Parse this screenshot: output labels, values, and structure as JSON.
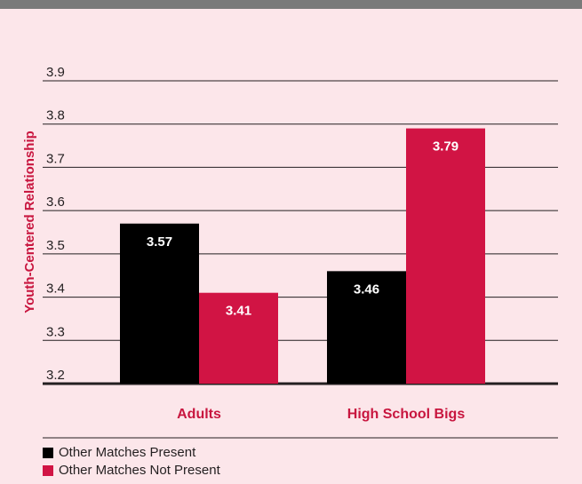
{
  "chart_data": {
    "type": "bar",
    "categories": [
      "Adults",
      "High School Bigs"
    ],
    "series": [
      {
        "name": "Other Matches Present",
        "values": [
          3.57,
          3.46
        ],
        "color": "#000000"
      },
      {
        "name": "Other Matches Not Present",
        "values": [
          3.41,
          3.79
        ],
        "color": "#d11444"
      }
    ],
    "ylabel": "Youth-Centered Relationship",
    "ylim": [
      3.2,
      3.9
    ],
    "yticks": [
      "3.2",
      "3.3",
      "3.4",
      "3.5",
      "3.6",
      "3.7",
      "3.8",
      "3.9"
    ],
    "grid": true,
    "legend_position": "bottom-left"
  }
}
